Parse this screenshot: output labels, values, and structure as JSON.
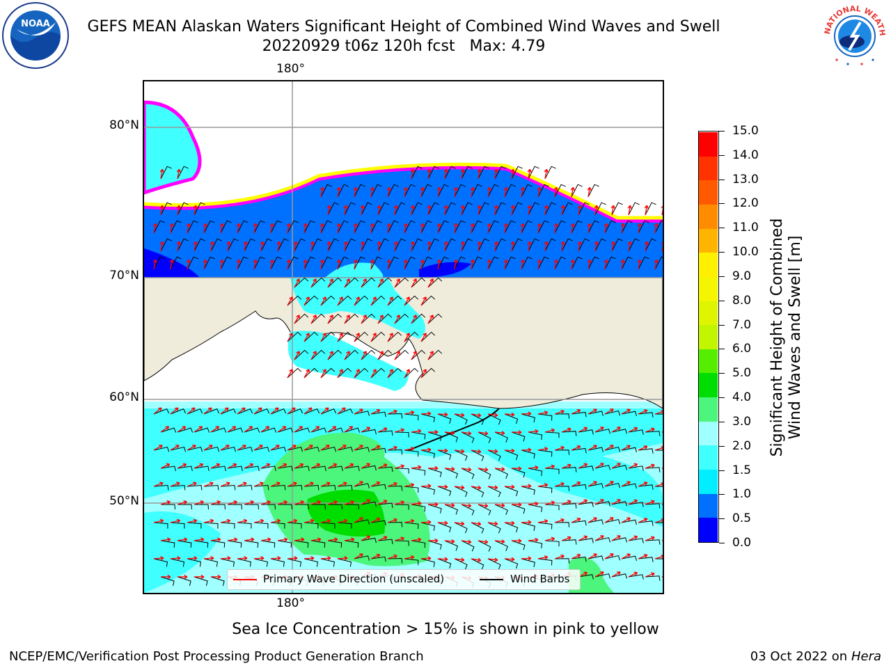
{
  "header": {
    "title_line1": "GEFS MEAN Alaskan Waters Significant Height of Combined Wind Waves and Swell",
    "title_line2": "20220929 t06z 120h fcst   Max: 4.79"
  },
  "logos": {
    "left": "NOAA",
    "right": "NATIONAL WEATHER SERVICE"
  },
  "map": {
    "lon_label_top": "180°",
    "lon_label_bottom": "180°",
    "lat_labels": [
      "80°N",
      "70°N",
      "60°N",
      "50°N"
    ],
    "land_color": "#efecdc",
    "legend": {
      "wave_dir_label": "Primary Wave Direction (unscaled)",
      "wind_barbs_label": "Wind Barbs",
      "wave_color": "#ff0000",
      "barb_color": "#000000"
    }
  },
  "colorbar": {
    "title_line1": "Significant Height of Combined",
    "title_line2": "Wind Waves and Swell [m]",
    "ticks": [
      "0.0",
      "0.5",
      "1.0",
      "1.5",
      "2.0",
      "3.0",
      "4.0",
      "5.0",
      "6.0",
      "7.0",
      "8.0",
      "9.0",
      "10.0",
      "11.0",
      "12.0",
      "13.0",
      "14.0",
      "15.0"
    ],
    "colors": [
      "#0000ff",
      "#0070ff",
      "#00eeff",
      "#40ffff",
      "#a0ffff",
      "#4cf57c",
      "#00dd00",
      "#55ee00",
      "#c2f500",
      "#dff500",
      "#f5f500",
      "#fff000",
      "#ffb400",
      "#ff8c00",
      "#ff5a00",
      "#ff3200",
      "#ff0000"
    ]
  },
  "footer": {
    "ice_note": "Sea Ice Concentration > 15% is shown in pink to yellow",
    "credit": "NCEP/EMC/Verification Post Processing Product Generation Branch",
    "date_text": "03 Oct 2022 on ",
    "host": "Hera"
  }
}
